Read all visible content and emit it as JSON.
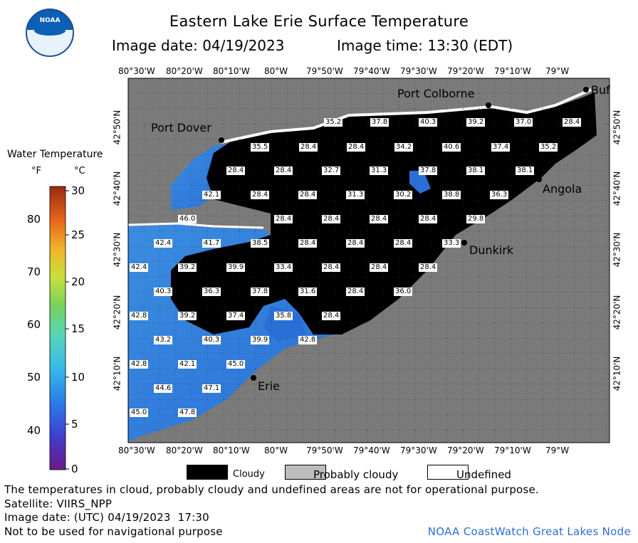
{
  "header": {
    "title": "Eastern Lake Erie Surface Temperature",
    "image_date_label": "Image date: 04/19/2023",
    "image_time_label": "Image time: 13:30 (EDT)",
    "logo_text": "NOAA"
  },
  "colorbar": {
    "title": "Water Temperature",
    "unit_f": "°F",
    "unit_c": "°C",
    "f_ticks": [
      "80",
      "70",
      "60",
      "50",
      "40"
    ],
    "c_ticks": [
      "30",
      "25",
      "20",
      "15",
      "10",
      "5",
      "0"
    ]
  },
  "axes": {
    "top_lon": [
      "80°30'W",
      "80°20'W",
      "80°10'W",
      "80°W",
      "79°50'W",
      "79°40'W",
      "79°30'W",
      "79°20'W",
      "79°10'W",
      "79°W"
    ],
    "bottom_lon": [
      "80°30'W",
      "80°20'W",
      "80°10'W",
      "80°W",
      "79°50'W",
      "79°40'W",
      "79°30'W",
      "79°20'W",
      "79°10'W",
      "79°W"
    ],
    "left_lat": [
      "42°50'N",
      "42°40'N",
      "42°30'N",
      "42°20'N",
      "42°10'N"
    ],
    "right_lat": [
      "42°50'N",
      "42°40'N",
      "42°30'N",
      "42°20'N",
      "42°10'N"
    ]
  },
  "places": {
    "port_colborne": "Port Colborne",
    "port_dover": "Port Dover",
    "buffalo": "Buf",
    "angola": "Angola",
    "dunkirk": "Dunkirk",
    "erie": "Erie"
  },
  "temperature_labels": [
    "35.2",
    "37.8",
    "40.3",
    "39.2",
    "37.0",
    "28.4",
    "35.5",
    "28.4",
    "28.4",
    "34.2",
    "40.6",
    "37.4",
    "35.2",
    "28.4",
    "28.4",
    "32.7",
    "31.3",
    "37.8",
    "38.1",
    "38.1",
    "42.1",
    "28.4",
    "28.4",
    "31.3",
    "30.2",
    "38.8",
    "36.3",
    "46.0",
    "28.4",
    "28.4",
    "28.4",
    "28.4",
    "29.8",
    "42.4",
    "41.7",
    "38.5",
    "28.4",
    "28.4",
    "28.4",
    "33.3",
    "42.4",
    "39.2",
    "39.9",
    "33.4",
    "28.4",
    "28.4",
    "28.4",
    "40.3",
    "36.3",
    "37.8",
    "31.6",
    "28.4",
    "36.0",
    "42.8",
    "39.2",
    "37.4",
    "35.8",
    "28.4",
    "43.2",
    "40.3",
    "39.9",
    "42.8",
    "42.8",
    "42.1",
    "45.0",
    "44.6",
    "47.1",
    "45.0",
    "47.8"
  ],
  "legend": {
    "cloudy": "Cloudy",
    "probably_cloudy": "Probably cloudy",
    "undefined": "Undefined"
  },
  "footer": {
    "note": "The temperatures in cloud, probably cloudy and undefined areas are not for operational purpose.",
    "satellite": "Satellite: VIIRS_NPP",
    "utc_date": "Image date: (UTC) 04/19/2023  17:30",
    "nav_warning": "Not to be used for navigational purpose",
    "credit": "NOAA CoastWatch Great Lakes Node"
  },
  "colors": {
    "land": "#7a7a7a",
    "cloud": "#000000",
    "water_warm": "#3b8be0",
    "water_cool": "#2f64d8",
    "credit_text": "#2b6fcf"
  }
}
